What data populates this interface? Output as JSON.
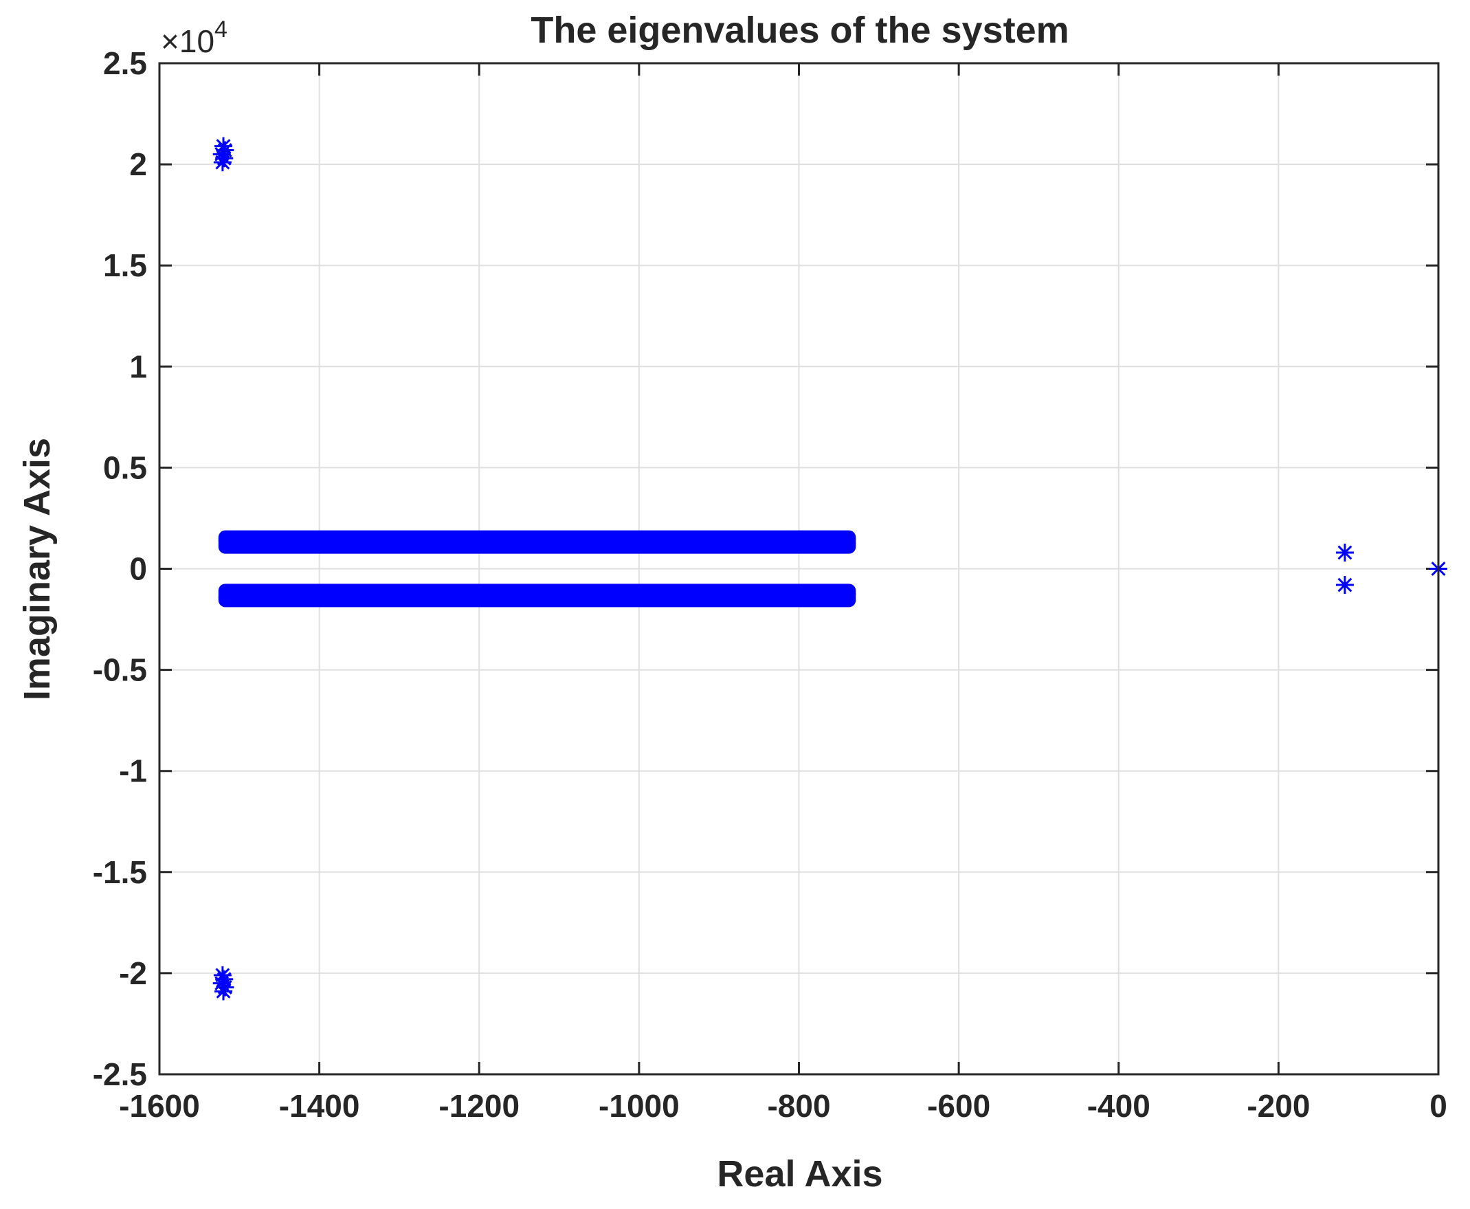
{
  "chart_data": {
    "type": "scatter",
    "title": "The eigenvalues of the system",
    "xlabel": "Real Axis",
    "ylabel": "Imaginary Axis",
    "xlim": [
      -1600,
      0
    ],
    "ylim": [
      -25000,
      25000
    ],
    "y_exponent_label": "×10",
    "y_exponent_power": "4",
    "xticks": [
      -1600,
      -1400,
      -1200,
      -1000,
      -800,
      -600,
      -400,
      -200,
      0
    ],
    "xtick_labels": [
      "-1600",
      "-1400",
      "-1200",
      "-1000",
      "-800",
      "-600",
      "-400",
      "-200",
      "0"
    ],
    "yticks": [
      25000,
      20000,
      15000,
      10000,
      5000,
      0,
      -5000,
      -10000,
      -15000,
      -20000,
      -25000
    ],
    "ytick_labels": [
      "2.5",
      "2",
      "1.5",
      "1",
      "0.5",
      "0",
      "-0.5",
      "-1",
      "-1.5",
      "-2",
      "-2.5"
    ],
    "grid": true,
    "marker": "*",
    "color": "#0000ff",
    "series": [
      {
        "points": [
          [
            -1520,
            20900
          ],
          [
            -1518,
            20700
          ],
          [
            -1522,
            20500
          ],
          [
            -1519,
            20300
          ],
          [
            -1521,
            20100
          ],
          [
            -1520,
            -20900
          ],
          [
            -1518,
            -20700
          ],
          [
            -1522,
            -20500
          ],
          [
            -1519,
            -20300
          ],
          [
            -1521,
            -20100
          ],
          [
            -1515,
            1400
          ],
          [
            -1480,
            1400
          ],
          [
            -1440,
            1400
          ],
          [
            -1400,
            1400
          ],
          [
            -1360,
            1400
          ],
          [
            -1320,
            1350
          ],
          [
            -1280,
            1350
          ],
          [
            -1240,
            1350
          ],
          [
            -1200,
            1350
          ],
          [
            -1160,
            1350
          ],
          [
            -1120,
            1350
          ],
          [
            -1080,
            1300
          ],
          [
            -1040,
            1300
          ],
          [
            -1000,
            1300
          ],
          [
            -960,
            1300
          ],
          [
            -920,
            1300
          ],
          [
            -880,
            1300
          ],
          [
            -840,
            1300
          ],
          [
            -800,
            1250
          ],
          [
            -770,
            1250
          ],
          [
            -740,
            1250
          ],
          [
            -1515,
            -1400
          ],
          [
            -1480,
            -1400
          ],
          [
            -1440,
            -1400
          ],
          [
            -1400,
            -1400
          ],
          [
            -1360,
            -1400
          ],
          [
            -1320,
            -1350
          ],
          [
            -1280,
            -1350
          ],
          [
            -1240,
            -1350
          ],
          [
            -1200,
            -1350
          ],
          [
            -1160,
            -1350
          ],
          [
            -1120,
            -1350
          ],
          [
            -1080,
            -1300
          ],
          [
            -1040,
            -1300
          ],
          [
            -1000,
            -1300
          ],
          [
            -960,
            -1300
          ],
          [
            -920,
            -1300
          ],
          [
            -880,
            -1300
          ],
          [
            -840,
            -1300
          ],
          [
            -800,
            -1250
          ],
          [
            -770,
            -1250
          ],
          [
            -740,
            -1250
          ],
          [
            -117,
            800
          ],
          [
            -117,
            -800
          ],
          [
            0,
            0
          ]
        ]
      }
    ]
  }
}
